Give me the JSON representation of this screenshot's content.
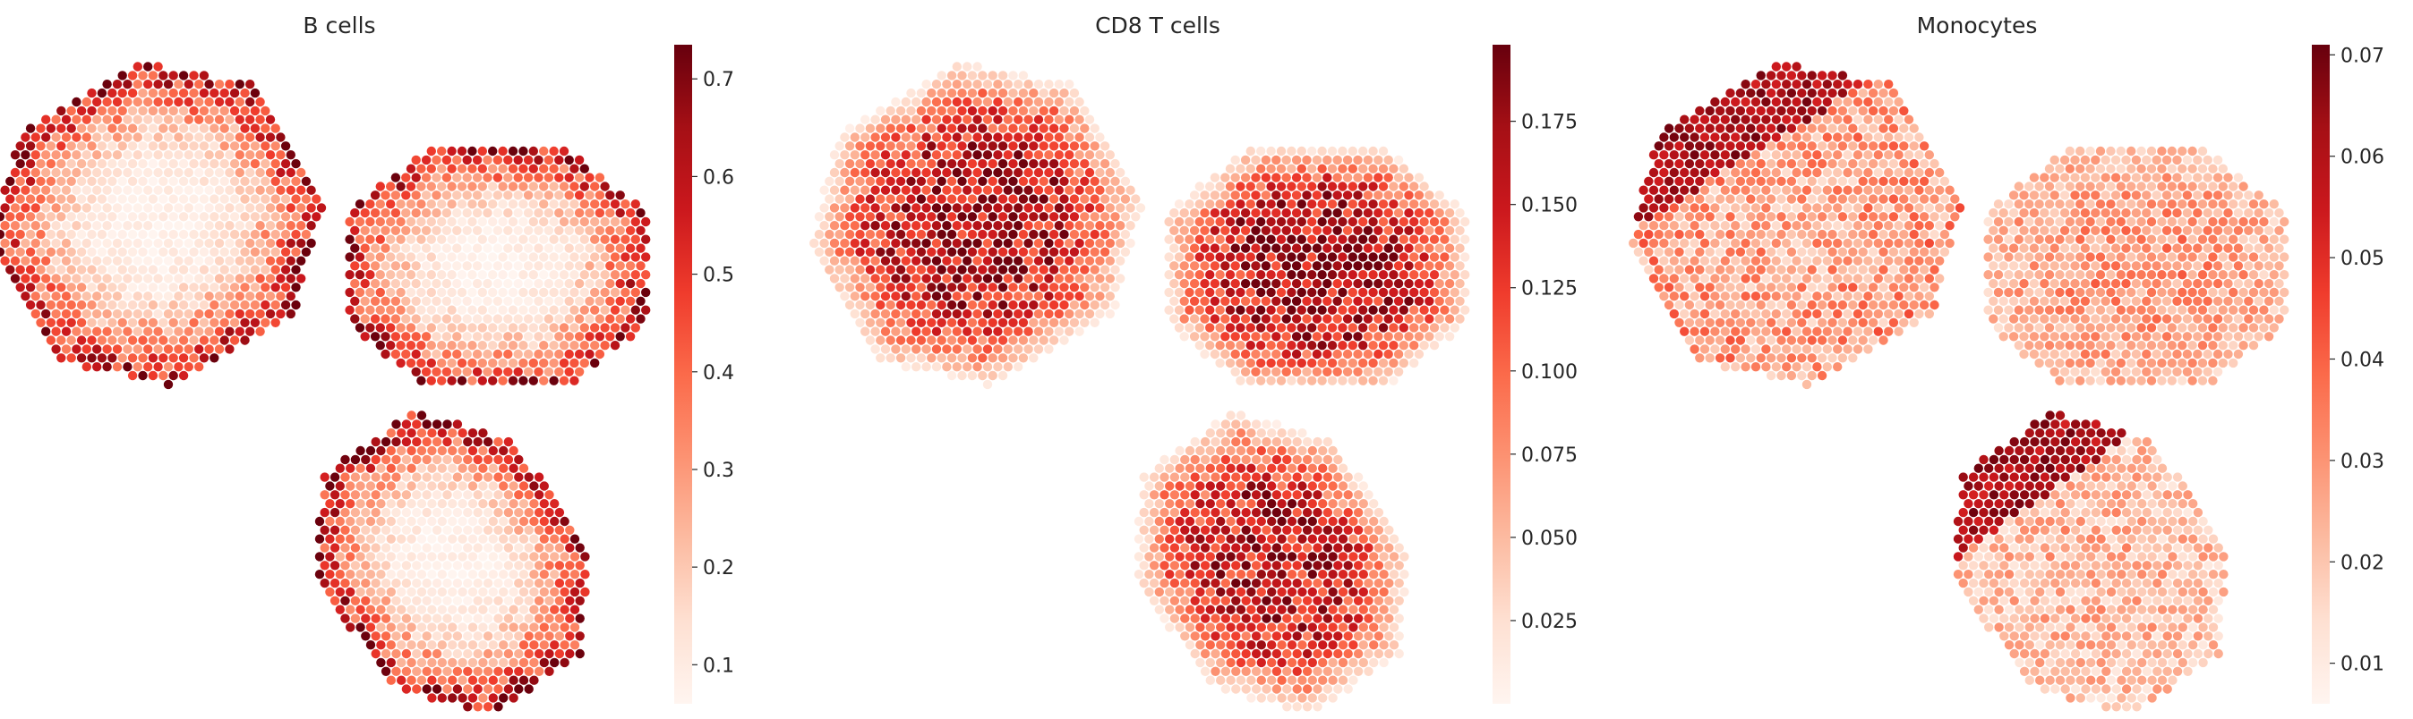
{
  "figure": {
    "background": "#ffffff",
    "colormap": "Reds"
  },
  "colormap_stops": [
    "#fff5f0",
    "#fee0d2",
    "#fcbba1",
    "#fc9272",
    "#fb6a4a",
    "#ef3b2c",
    "#cb181d",
    "#a50f15",
    "#67000d"
  ],
  "chart_data": [
    {
      "type": "heatmap",
      "subtype": "spatial-spot-map",
      "title": "B cells",
      "colorbar": {
        "range": [
          0.06,
          0.735
        ],
        "ticks": [
          0.1,
          0.2,
          0.3,
          0.4,
          0.5,
          0.6,
          0.7
        ],
        "tick_labels": [
          "0.1",
          "0.2",
          "0.3",
          "0.4",
          "0.5",
          "0.6",
          "0.7"
        ]
      },
      "pattern": "high abundance on the outer rims of each tissue section, low in the interiors",
      "sections": [
        {
          "name": "top-left",
          "vmax": 0.73,
          "interior": 0.08,
          "rim": 0.66
        },
        {
          "name": "top-right",
          "vmax": 0.73,
          "interior": 0.08,
          "rim": 0.66
        },
        {
          "name": "bottom",
          "vmax": 0.73,
          "interior": 0.08,
          "rim": 0.66
        }
      ]
    },
    {
      "type": "heatmap",
      "subtype": "spatial-spot-map",
      "title": "CD8 T cells",
      "colorbar": {
        "range": [
          0.0,
          0.198
        ],
        "ticks": [
          0.025,
          0.05,
          0.075,
          0.1,
          0.125,
          0.15,
          0.175
        ],
        "tick_labels": [
          "0.025",
          "0.050",
          "0.075",
          "0.100",
          "0.125",
          "0.150",
          "0.175"
        ]
      },
      "pattern": "high abundance in the centre of each tissue section, fading toward the edges",
      "sections": [
        {
          "name": "top-left",
          "vmax": 0.195,
          "interior": 0.17,
          "rim": 0.01
        },
        {
          "name": "top-right",
          "vmax": 0.195,
          "interior": 0.18,
          "rim": 0.01
        },
        {
          "name": "bottom",
          "vmax": 0.195,
          "interior": 0.16,
          "rim": 0.01
        }
      ]
    },
    {
      "type": "heatmap",
      "subtype": "spatial-spot-map",
      "title": "Monocytes",
      "colorbar": {
        "range": [
          0.006,
          0.071
        ],
        "ticks": [
          0.01,
          0.02,
          0.03,
          0.04,
          0.05,
          0.06,
          0.07
        ],
        "tick_labels": [
          "0.01",
          "0.02",
          "0.03",
          "0.04",
          "0.05",
          "0.06",
          "0.07"
        ]
      },
      "pattern": "low to moderate abundance throughout, with a high-abundance band along the left edge of the top-left and bottom sections",
      "sections": [
        {
          "name": "top-left",
          "vmax": 0.07,
          "interior": 0.025,
          "rim": 0.03,
          "hotspot": "left-edge"
        },
        {
          "name": "top-right",
          "vmax": 0.05,
          "interior": 0.03,
          "rim": 0.02
        },
        {
          "name": "bottom",
          "vmax": 0.07,
          "interior": 0.025,
          "rim": 0.02,
          "hotspot": "left-edge"
        }
      ]
    }
  ]
}
